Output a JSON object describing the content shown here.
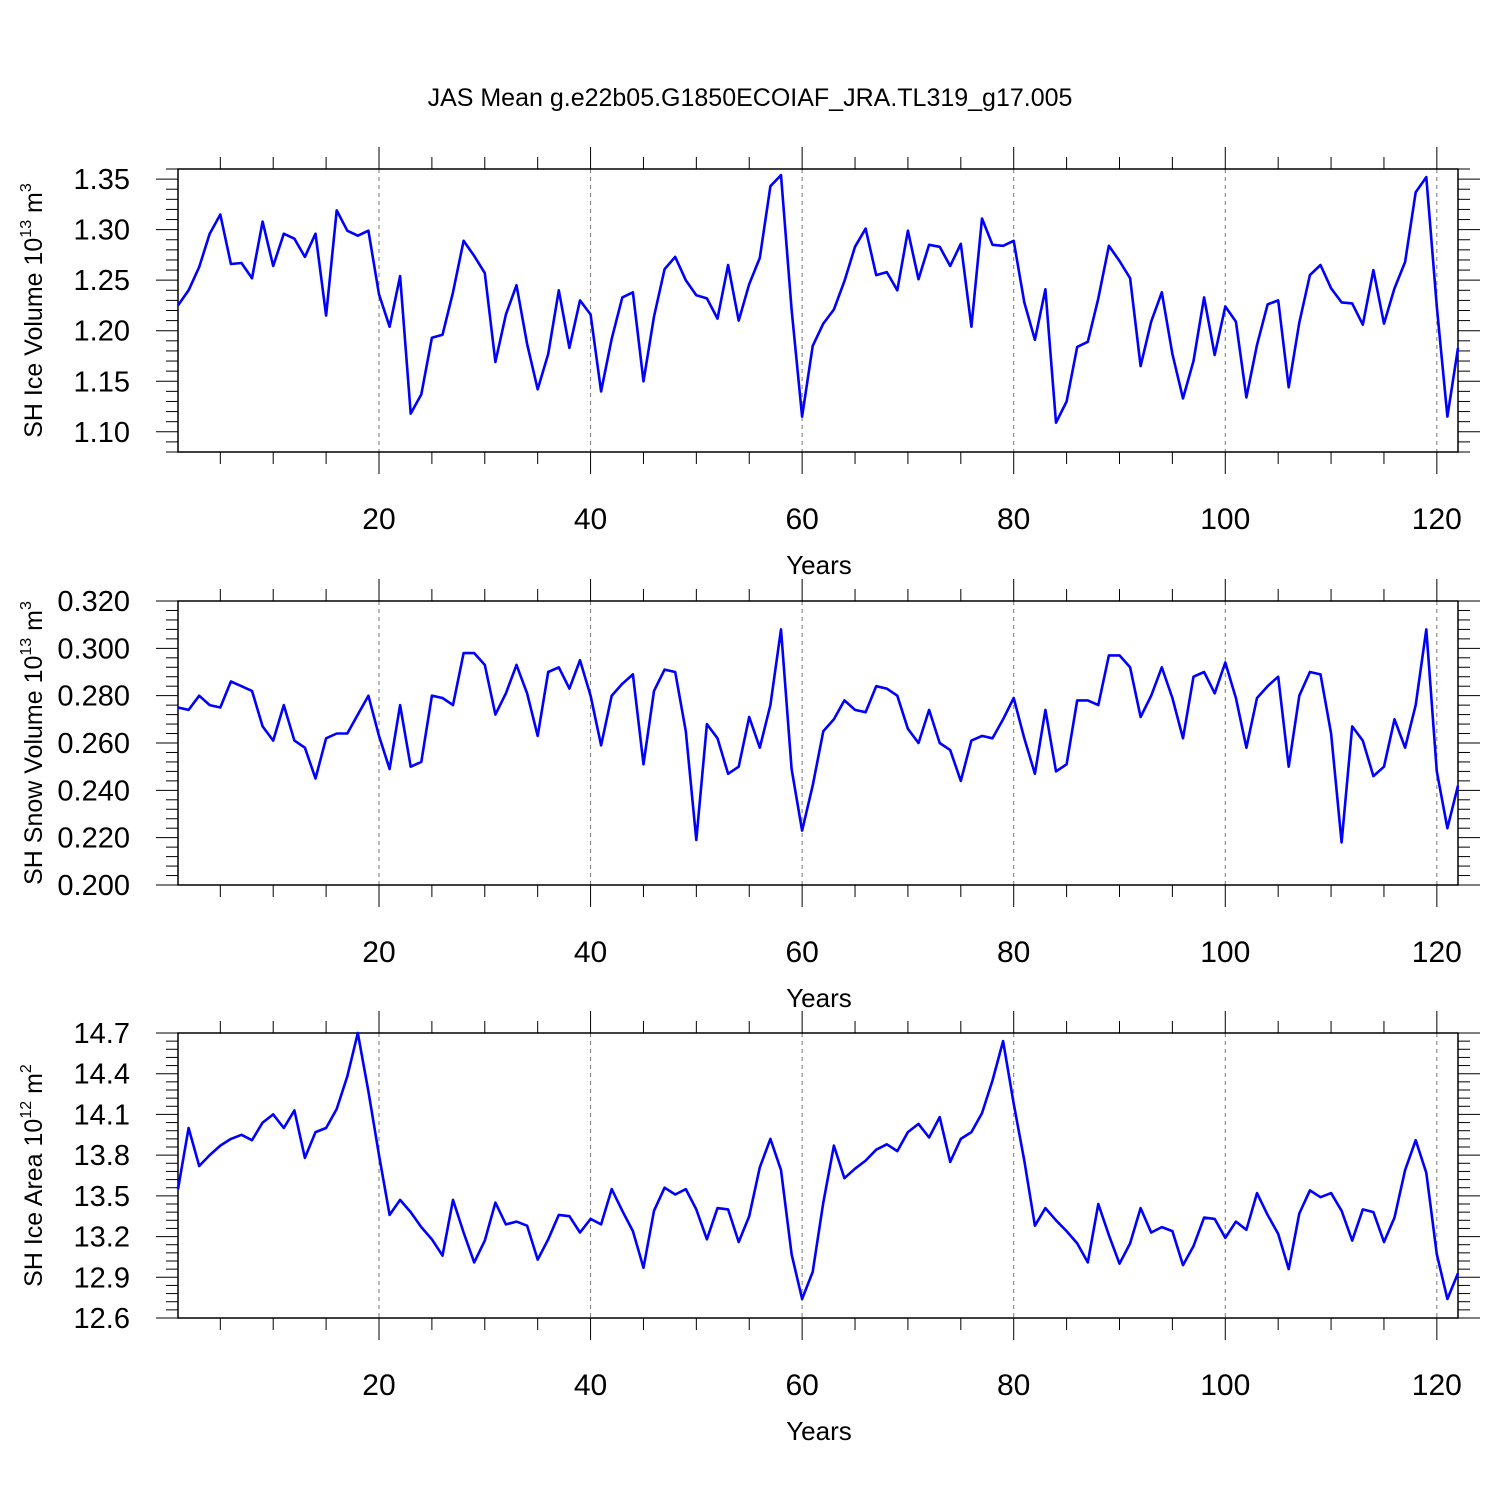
{
  "title": "JAS Mean g.e22b05.G1850ECOIAF_JRA.TL319_g17.005",
  "chart_data": [
    {
      "type": "line",
      "title": "",
      "xlabel": "Years",
      "ylabel": "SH Ice Volume",
      "yunit_base": "10",
      "yunit_exp": "13",
      "yunit_unit": "m",
      "yunit_unit_exp": "3",
      "xlim": [
        1,
        122
      ],
      "ylim": [
        1.08,
        1.36
      ],
      "xticks": [
        20,
        40,
        60,
        80,
        100,
        120
      ],
      "xtick_labels": [
        "20",
        "40",
        "60",
        "80",
        "100",
        "120"
      ],
      "yticks": [
        1.1,
        1.15,
        1.2,
        1.25,
        1.3,
        1.35
      ],
      "ytick_labels": [
        "1.10",
        "1.15",
        "1.20",
        "1.25",
        "1.30",
        "1.35"
      ],
      "grid": "dashed vertical at x ticks",
      "color": "#0000ff",
      "x": [
        1,
        2,
        3,
        4,
        5,
        6,
        7,
        8,
        9,
        10,
        11,
        12,
        13,
        14,
        15,
        16,
        17,
        18,
        19,
        20,
        21,
        22,
        23,
        24,
        25,
        26,
        27,
        28,
        29,
        30,
        31,
        32,
        33,
        34,
        35,
        36,
        37,
        38,
        39,
        40,
        41,
        42,
        43,
        44,
        45,
        46,
        47,
        48,
        49,
        50,
        51,
        52,
        53,
        54,
        55,
        56,
        57,
        58,
        59,
        60,
        61,
        62,
        63,
        64,
        65,
        66,
        67,
        68,
        69,
        70,
        71,
        72,
        73,
        74,
        75,
        76,
        77,
        78,
        79,
        80,
        81,
        82,
        83,
        84,
        85,
        86,
        87,
        88,
        89,
        90,
        91,
        92,
        93,
        94,
        95,
        96,
        97,
        98,
        99,
        100,
        101,
        102,
        103,
        104,
        105,
        106,
        107,
        108,
        109,
        110,
        111,
        112,
        113,
        114,
        115,
        116,
        117,
        118,
        119,
        120,
        121,
        122
      ],
      "y": [
        1.225,
        1.24,
        1.263,
        1.296,
        1.315,
        1.266,
        1.267,
        1.252,
        1.308,
        1.264,
        1.296,
        1.291,
        1.273,
        1.296,
        1.215,
        1.319,
        1.299,
        1.294,
        1.299,
        1.236,
        1.204,
        1.254,
        1.118,
        1.137,
        1.193,
        1.196,
        1.238,
        1.289,
        1.274,
        1.257,
        1.169,
        1.216,
        1.245,
        1.187,
        1.142,
        1.177,
        1.24,
        1.183,
        1.23,
        1.216,
        1.14,
        1.192,
        1.233,
        1.238,
        1.15,
        1.214,
        1.261,
        1.273,
        1.25,
        1.235,
        1.232,
        1.212,
        1.265,
        1.21,
        1.246,
        1.272,
        1.343,
        1.354,
        1.221,
        1.115,
        1.185,
        1.207,
        1.221,
        1.249,
        1.283,
        1.301,
        1.255,
        1.258,
        1.24,
        1.299,
        1.251,
        1.285,
        1.283,
        1.264,
        1.286,
        1.204,
        1.311,
        1.285,
        1.284,
        1.289,
        1.228,
        1.191,
        1.241,
        1.109,
        1.13,
        1.184,
        1.189,
        1.232,
        1.284,
        1.269,
        1.252,
        1.165,
        1.209,
        1.238,
        1.177,
        1.133,
        1.17,
        1.233,
        1.176,
        1.224,
        1.209,
        1.134,
        1.186,
        1.226,
        1.23,
        1.144,
        1.208,
        1.255,
        1.265,
        1.242,
        1.228,
        1.227,
        1.206,
        1.26,
        1.207,
        1.242,
        1.268,
        1.337,
        1.352,
        1.224,
        1.115,
        1.183
      ]
    },
    {
      "type": "line",
      "title": "",
      "xlabel": "Years",
      "ylabel": "SH Snow Volume",
      "yunit_base": "10",
      "yunit_exp": "13",
      "yunit_unit": "m",
      "yunit_unit_exp": "3",
      "xlim": [
        1,
        122
      ],
      "ylim": [
        0.2,
        0.32
      ],
      "xticks": [
        20,
        40,
        60,
        80,
        100,
        120
      ],
      "xtick_labels": [
        "20",
        "40",
        "60",
        "80",
        "100",
        "120"
      ],
      "yticks": [
        0.2,
        0.22,
        0.24,
        0.26,
        0.28,
        0.3,
        0.32
      ],
      "ytick_labels": [
        "0.200",
        "0.220",
        "0.240",
        "0.260",
        "0.280",
        "0.300",
        "0.320"
      ],
      "grid": "dashed vertical at x ticks",
      "color": "#0000ff",
      "x": [
        1,
        2,
        3,
        4,
        5,
        6,
        7,
        8,
        9,
        10,
        11,
        12,
        13,
        14,
        15,
        16,
        17,
        18,
        19,
        20,
        21,
        22,
        23,
        24,
        25,
        26,
        27,
        28,
        29,
        30,
        31,
        32,
        33,
        34,
        35,
        36,
        37,
        38,
        39,
        40,
        41,
        42,
        43,
        44,
        45,
        46,
        47,
        48,
        49,
        50,
        51,
        52,
        53,
        54,
        55,
        56,
        57,
        58,
        59,
        60,
        61,
        62,
        63,
        64,
        65,
        66,
        67,
        68,
        69,
        70,
        71,
        72,
        73,
        74,
        75,
        76,
        77,
        78,
        79,
        80,
        81,
        82,
        83,
        84,
        85,
        86,
        87,
        88,
        89,
        90,
        91,
        92,
        93,
        94,
        95,
        96,
        97,
        98,
        99,
        100,
        101,
        102,
        103,
        104,
        105,
        106,
        107,
        108,
        109,
        110,
        111,
        112,
        113,
        114,
        115,
        116,
        117,
        118,
        119,
        120,
        121,
        122
      ],
      "y": [
        0.275,
        0.274,
        0.28,
        0.276,
        0.275,
        0.286,
        0.284,
        0.282,
        0.267,
        0.261,
        0.276,
        0.261,
        0.258,
        0.245,
        0.262,
        0.264,
        0.264,
        0.272,
        0.28,
        0.263,
        0.249,
        0.276,
        0.25,
        0.252,
        0.28,
        0.279,
        0.276,
        0.298,
        0.298,
        0.293,
        0.272,
        0.281,
        0.293,
        0.281,
        0.263,
        0.29,
        0.292,
        0.283,
        0.295,
        0.28,
        0.259,
        0.28,
        0.285,
        0.289,
        0.251,
        0.282,
        0.291,
        0.29,
        0.265,
        0.219,
        0.268,
        0.262,
        0.247,
        0.25,
        0.271,
        0.258,
        0.276,
        0.308,
        0.249,
        0.223,
        0.242,
        0.265,
        0.27,
        0.278,
        0.274,
        0.273,
        0.284,
        0.283,
        0.28,
        0.266,
        0.26,
        0.274,
        0.26,
        0.257,
        0.244,
        0.261,
        0.263,
        0.262,
        0.27,
        0.279,
        0.262,
        0.247,
        0.274,
        0.248,
        0.251,
        0.278,
        0.278,
        0.276,
        0.297,
        0.297,
        0.292,
        0.271,
        0.28,
        0.292,
        0.279,
        0.262,
        0.288,
        0.29,
        0.281,
        0.294,
        0.279,
        0.258,
        0.279,
        0.284,
        0.288,
        0.25,
        0.28,
        0.29,
        0.289,
        0.264,
        0.218,
        0.267,
        0.261,
        0.246,
        0.25,
        0.27,
        0.258,
        0.276,
        0.308,
        0.248,
        0.224,
        0.242
      ]
    },
    {
      "type": "line",
      "title": "",
      "xlabel": "Years",
      "ylabel": "SH Ice Area",
      "yunit_base": "10",
      "yunit_exp": "12",
      "yunit_unit": "m",
      "yunit_unit_exp": "2",
      "xlim": [
        1,
        122
      ],
      "ylim": [
        12.6,
        14.7
      ],
      "xticks": [
        20,
        40,
        60,
        80,
        100,
        120
      ],
      "xtick_labels": [
        "20",
        "40",
        "60",
        "80",
        "100",
        "120"
      ],
      "yticks": [
        12.6,
        12.9,
        13.2,
        13.5,
        13.8,
        14.1,
        14.4,
        14.7
      ],
      "ytick_labels": [
        "12.6",
        "12.9",
        "13.2",
        "13.5",
        "13.8",
        "14.1",
        "14.4",
        "14.7"
      ],
      "grid": "dashed vertical at x ticks",
      "color": "#0000ff",
      "x": [
        1,
        2,
        3,
        4,
        5,
        6,
        7,
        8,
        9,
        10,
        11,
        12,
        13,
        14,
        15,
        16,
        17,
        18,
        19,
        20,
        21,
        22,
        23,
        24,
        25,
        26,
        27,
        28,
        29,
        30,
        31,
        32,
        33,
        34,
        35,
        36,
        37,
        38,
        39,
        40,
        41,
        42,
        43,
        44,
        45,
        46,
        47,
        48,
        49,
        50,
        51,
        52,
        53,
        54,
        55,
        56,
        57,
        58,
        59,
        60,
        61,
        62,
        63,
        64,
        65,
        66,
        67,
        68,
        69,
        70,
        71,
        72,
        73,
        74,
        75,
        76,
        77,
        78,
        79,
        80,
        81,
        82,
        83,
        84,
        85,
        86,
        87,
        88,
        89,
        90,
        91,
        92,
        93,
        94,
        95,
        96,
        97,
        98,
        99,
        100,
        101,
        102,
        103,
        104,
        105,
        106,
        107,
        108,
        109,
        110,
        111,
        112,
        113,
        114,
        115,
        116,
        117,
        118,
        119,
        120,
        121,
        122
      ],
      "y": [
        13.55,
        14.0,
        13.72,
        13.8,
        13.87,
        13.92,
        13.95,
        13.91,
        14.04,
        14.1,
        14.0,
        14.13,
        13.78,
        13.97,
        14.0,
        14.14,
        14.38,
        14.7,
        14.27,
        13.8,
        13.36,
        13.47,
        13.38,
        13.27,
        13.18,
        13.06,
        13.47,
        13.23,
        13.01,
        13.17,
        13.45,
        13.29,
        13.31,
        13.28,
        13.03,
        13.18,
        13.36,
        13.35,
        13.23,
        13.33,
        13.29,
        13.55,
        13.39,
        13.24,
        12.97,
        13.39,
        13.56,
        13.51,
        13.55,
        13.4,
        13.18,
        13.41,
        13.4,
        13.16,
        13.35,
        13.71,
        13.92,
        13.69,
        13.07,
        12.74,
        12.94,
        13.45,
        13.87,
        13.63,
        13.7,
        13.76,
        13.84,
        13.88,
        13.83,
        13.97,
        14.03,
        13.93,
        14.08,
        13.75,
        13.92,
        13.97,
        14.11,
        14.35,
        14.64,
        14.18,
        13.76,
        13.28,
        13.41,
        13.32,
        13.24,
        13.15,
        13.01,
        13.44,
        13.21,
        13.0,
        13.15,
        13.41,
        13.23,
        13.27,
        13.24,
        12.99,
        13.13,
        13.34,
        13.33,
        13.19,
        13.31,
        13.25,
        13.52,
        13.36,
        13.22,
        12.96,
        13.37,
        13.54,
        13.49,
        13.52,
        13.39,
        13.17,
        13.4,
        13.38,
        13.16,
        13.34,
        13.69,
        13.91,
        13.67,
        13.07,
        12.74,
        12.93
      ]
    }
  ]
}
